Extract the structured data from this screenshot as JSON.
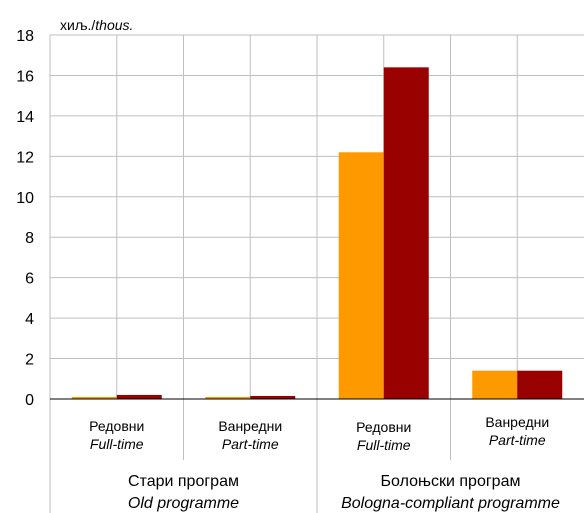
{
  "chart_data": {
    "type": "bar",
    "unit_label": {
      "main": "хиљ.",
      "sep": "/",
      "italic": "thous."
    },
    "ylim": [
      0,
      18
    ],
    "yticks": [
      "0",
      "2",
      "4",
      "6",
      "8",
      "10",
      "12",
      "14",
      "16",
      "18"
    ],
    "grid": true,
    "categories": [
      {
        "main": "Редовни",
        "sub": "Full-time"
      },
      {
        "main": "Ванредни",
        "sub": "Part-time"
      },
      {
        "main": "Редовни",
        "sub": "Full-time"
      },
      {
        "main": "Ванредни",
        "sub": "Part-time"
      }
    ],
    "groups": [
      {
        "main": "Стари програм",
        "sub": "Old programme"
      },
      {
        "main": "Болоњски програм",
        "sub": "Bologna-compliant programme"
      }
    ],
    "series": [
      {
        "color": "#FF9900",
        "values": [
          0.1,
          0.1,
          12.2,
          1.4
        ]
      },
      {
        "color": "#990000",
        "values": [
          0.2,
          0.15,
          16.4,
          1.4
        ]
      }
    ]
  }
}
